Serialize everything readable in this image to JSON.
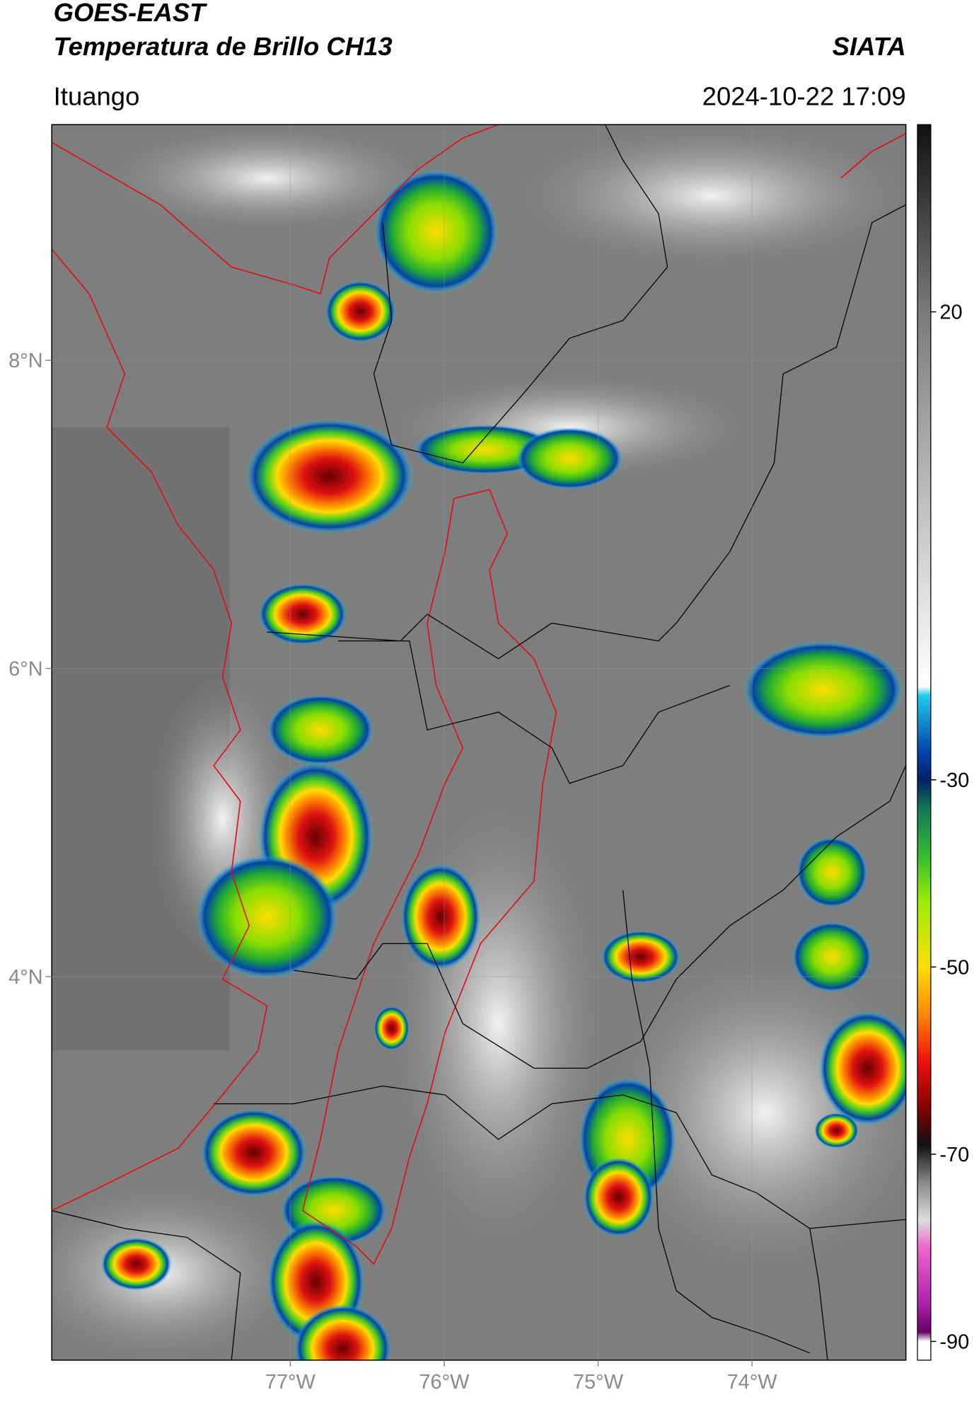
{
  "header": {
    "title": "GOES-EAST",
    "subtitle": "Temperatura de Brillo CH13",
    "source": "SIATA",
    "location": "Ituango",
    "timestamp": "2024-10-22 17:09"
  },
  "map": {
    "xlim": [
      -78.55,
      -73.0
    ],
    "ylim": [
      1.51,
      9.53
    ],
    "xticks": [
      {
        "value": -77,
        "label": "77°W"
      },
      {
        "value": -76,
        "label": "76°W"
      },
      {
        "value": -75,
        "label": "75°W"
      },
      {
        "value": -74,
        "label": "74°W"
      }
    ],
    "yticks": [
      {
        "value": 8,
        "label": "8°N"
      },
      {
        "value": 6,
        "label": "6°N"
      },
      {
        "value": 4,
        "label": "4°N"
      }
    ]
  },
  "colorbar": {
    "clim": [
      -92,
      40
    ],
    "ticks": [
      20,
      -30,
      -50,
      -70,
      -90
    ],
    "colormap": [
      {
        "value": 40,
        "color": "#111111"
      },
      {
        "value": 20,
        "color": "#7a7a7a"
      },
      {
        "value": 0,
        "color": "#bdbdbd"
      },
      {
        "value": -20,
        "color": "#ffffff"
      },
      {
        "value": -21,
        "color": "#22ccee"
      },
      {
        "value": -27,
        "color": "#0044aa"
      },
      {
        "value": -30,
        "color": "#002266"
      },
      {
        "value": -33,
        "color": "#117755"
      },
      {
        "value": -38,
        "color": "#33bb33"
      },
      {
        "value": -43,
        "color": "#99ee00"
      },
      {
        "value": -50,
        "color": "#ffdd00"
      },
      {
        "value": -55,
        "color": "#ff8800"
      },
      {
        "value": -60,
        "color": "#ee1111"
      },
      {
        "value": -65,
        "color": "#880000"
      },
      {
        "value": -69,
        "color": "#111111"
      },
      {
        "value": -73,
        "color": "#888888"
      },
      {
        "value": -77,
        "color": "#dddddd"
      },
      {
        "value": -80,
        "color": "#ee66cc"
      },
      {
        "value": -86,
        "color": "#aa22aa"
      },
      {
        "value": -89,
        "color": "#660066"
      },
      {
        "value": -90,
        "color": "#ffffff"
      },
      {
        "value": -92,
        "color": "#ffffff"
      }
    ]
  }
}
